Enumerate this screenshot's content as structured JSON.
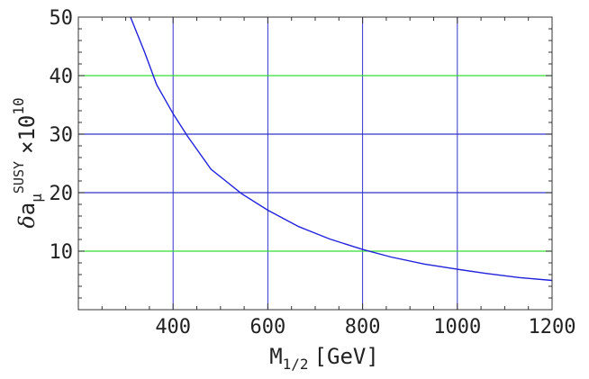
{
  "chart_data": {
    "type": "line",
    "title": "",
    "xlabel": {
      "main": "M",
      "sub": "1/2",
      "unit": "[GeV]"
    },
    "ylabel": {
      "delta": "δ",
      "a": "a",
      "sub": "μ",
      "sup": "SUSY",
      "times": "×10",
      "exp": "10"
    },
    "xlim": [
      200,
      1200
    ],
    "ylim": [
      0,
      50
    ],
    "x_ticks": [
      400,
      600,
      800,
      1000,
      1200
    ],
    "y_ticks": [
      10,
      20,
      30,
      40,
      50
    ],
    "x_gridlines": [
      400,
      600,
      800,
      1000
    ],
    "y_gridlines": [
      {
        "value": 10,
        "color": "#33dd33"
      },
      {
        "value": 20,
        "color": "#3333cc"
      },
      {
        "value": 30,
        "color": "#3333cc"
      },
      {
        "value": 40,
        "color": "#33dd33"
      }
    ],
    "grid_color": "#3333cc",
    "series": [
      {
        "color": "#2222dd",
        "x": [
          310,
          340,
          365,
          400,
          430,
          480,
          545,
          600,
          665,
          730,
          800,
          860,
          930,
          1000,
          1060,
          1130,
          1200
        ],
        "y": [
          50,
          44,
          38.5,
          33.5,
          29.7,
          24,
          19.8,
          17,
          14.2,
          12.1,
          10.3,
          9,
          7.8,
          6.9,
          6.2,
          5.5,
          5
        ]
      }
    ]
  }
}
